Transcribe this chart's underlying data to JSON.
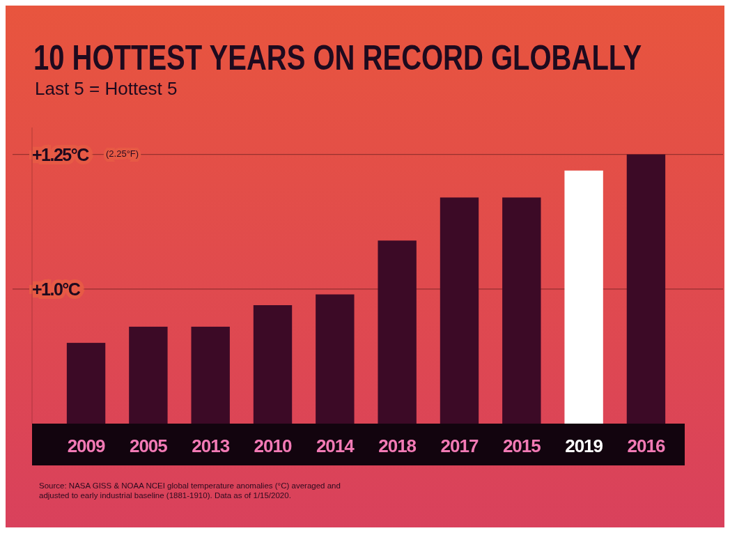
{
  "chart_data": {
    "type": "bar",
    "title": "10 HOTTEST YEARS ON RECORD GLOBALLY",
    "subtitle": "Last 5 = Hottest 5",
    "categories": [
      "2009",
      "2005",
      "2013",
      "2010",
      "2014",
      "2018",
      "2017",
      "2015",
      "2019",
      "2016"
    ],
    "values": [
      0.9,
      0.93,
      0.93,
      0.97,
      0.99,
      1.09,
      1.17,
      1.17,
      1.22,
      1.25
    ],
    "colors": [
      "#3c0a26",
      "#3c0a26",
      "#3c0a26",
      "#3c0a26",
      "#3c0a26",
      "#3c0a26",
      "#3c0a26",
      "#3c0a26",
      "#ffffff",
      "#3c0a26"
    ],
    "ylim": [
      0.75,
      1.3
    ],
    "yticks": [
      {
        "value": 1.0,
        "label": "+1.0°C"
      },
      {
        "value": 1.25,
        "label": "+1.25°C"
      }
    ],
    "grid": "y",
    "annotations": [
      "(2.25°F)",
      "Source: NASA GISS & NOAA NCEI global temperature anomalies (°C) averaged and adjusted to early industrial baseline (1881-1910). Data as of 1/15/2020."
    ]
  }
}
